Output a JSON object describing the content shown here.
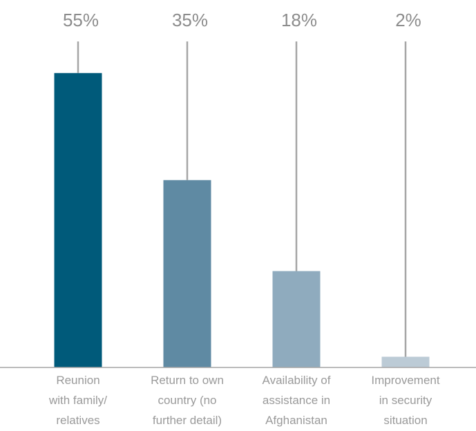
{
  "chart_data": {
    "type": "bar",
    "categories": [
      [
        "Reunion",
        "with family/",
        "relatives"
      ],
      [
        "Return to own",
        "country (no",
        "further detail)"
      ],
      [
        "Availability of",
        "assistance in",
        "Afghanistan"
      ],
      [
        "Improvement",
        "in security",
        "situation"
      ]
    ],
    "values": [
      55,
      35,
      18,
      2
    ],
    "data_labels": [
      "55%",
      "35%",
      "18%",
      "2%"
    ],
    "ylim": [
      0,
      60
    ],
    "grid": false,
    "legend": "none",
    "colors": [
      "#005a7a",
      "#5f8aa3",
      "#8fabbe",
      "#bccbd6"
    ],
    "leader_line_color": "#a6a6a6",
    "axis_color": "#a6a6a6"
  }
}
